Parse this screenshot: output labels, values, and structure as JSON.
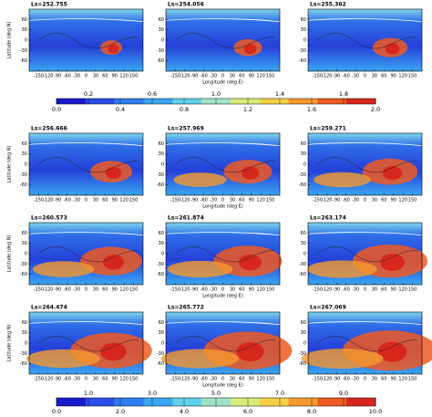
{
  "chart_data": {
    "type": "map-grid",
    "xlabel": "Longitude (deg E)",
    "ylabel": "Latitude (deg N)",
    "xlim": [
      -180,
      180
    ],
    "ylim": [
      -90,
      90
    ],
    "xticks": [
      -150,
      -120,
      -90,
      -60,
      -30,
      0,
      30,
      60,
      90,
      120,
      150
    ],
    "yticks": [
      -60,
      -30,
      0,
      30,
      60
    ],
    "panels": [
      "Ls=252.755",
      "Ls=254.056",
      "Ls=255.362",
      "Ls=256.666",
      "Ls=257.969",
      "Ls=259.271",
      "Ls=260.573",
      "Ls=261.874",
      "Ls=263.174",
      "Ls=264.474",
      "Ls=265.772",
      "Ls=267.069"
    ],
    "colorbars": [
      {
        "lim": [
          0,
          2
        ],
        "ticks": [
          {
            "value": 0,
            "label": "0.0"
          },
          0.2,
          0.4,
          0.6,
          0.8,
          {
            "value": 1,
            "label": "1.0"
          },
          1.2,
          1.4,
          1.6,
          1.8,
          {
            "value": 2,
            "label": "2.0"
          }
        ]
      },
      {
        "lim": [
          0,
          10
        ],
        "ticks": [
          {
            "value": 0,
            "label": "0.0"
          },
          {
            "value": 1,
            "label": "1.0"
          },
          {
            "value": 2,
            "label": "2.0"
          },
          {
            "value": 3,
            "label": "3.0"
          },
          {
            "value": 4,
            "label": "4.0"
          },
          {
            "value": 5,
            "label": "5.0"
          },
          {
            "value": 6,
            "label": "6.0"
          },
          {
            "value": 7,
            "label": "7.0"
          },
          {
            "value": 8,
            "label": "8.0"
          },
          {
            "value": 9,
            "label": "9.0"
          },
          {
            "value": 10,
            "label": "10.0"
          }
        ]
      }
    ],
    "colors": [
      "#1a1acc",
      "#2a4ee6",
      "#2f7cf0",
      "#3aa6f2",
      "#5fd0e8",
      "#9fe3c4",
      "#d9ec7a",
      "#f7d046",
      "#f59a2e",
      "#ee5a22",
      "#d7261c"
    ]
  }
}
